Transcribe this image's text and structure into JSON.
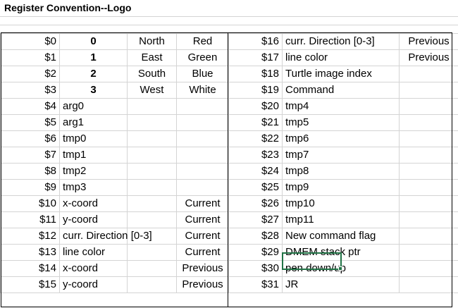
{
  "sheet": {
    "title": "Register Convention--Logo"
  },
  "left_rows": [
    {
      "reg": "$0",
      "a": "0",
      "b": "North",
      "c": "Red"
    },
    {
      "reg": "$1",
      "a": "1",
      "b": "East",
      "c": "Green"
    },
    {
      "reg": "$2",
      "a": "2",
      "b": "South",
      "c": "Blue"
    },
    {
      "reg": "$3",
      "a": "3",
      "b": "West",
      "c": "White"
    },
    {
      "reg": "$4",
      "a": "arg0",
      "b": "",
      "c": ""
    },
    {
      "reg": "$5",
      "a": "arg1",
      "b": "",
      "c": ""
    },
    {
      "reg": "$6",
      "a": "tmp0",
      "b": "",
      "c": ""
    },
    {
      "reg": "$7",
      "a": "tmp1",
      "b": "",
      "c": ""
    },
    {
      "reg": "$8",
      "a": "tmp2",
      "b": "",
      "c": ""
    },
    {
      "reg": "$9",
      "a": "tmp3",
      "b": "",
      "c": ""
    },
    {
      "reg": "$10",
      "a": "x-coord",
      "b": "",
      "c": "Current"
    },
    {
      "reg": "$11",
      "a": "y-coord",
      "b": "",
      "c": "Current"
    },
    {
      "reg": "$12",
      "a": "curr. Direction [0-3]",
      "b": "",
      "c": "Current"
    },
    {
      "reg": "$13",
      "a": "line color",
      "b": "",
      "c": "Current"
    },
    {
      "reg": "$14",
      "a": "x-coord",
      "b": "",
      "c": "Previous"
    },
    {
      "reg": "$15",
      "a": "y-coord",
      "b": "",
      "c": "Previous"
    }
  ],
  "right_rows": [
    {
      "reg": "$16",
      "desc": "curr. Direction [0-3]",
      "note": "Previous"
    },
    {
      "reg": "$17",
      "desc": "line color",
      "note": "Previous"
    },
    {
      "reg": "$18",
      "desc": "Turtle image index",
      "note": ""
    },
    {
      "reg": "$19",
      "desc": "Command",
      "note": ""
    },
    {
      "reg": "$20",
      "desc": "tmp4",
      "note": ""
    },
    {
      "reg": "$21",
      "desc": "tmp5",
      "note": ""
    },
    {
      "reg": "$22",
      "desc": "tmp6",
      "note": ""
    },
    {
      "reg": "$23",
      "desc": "tmp7",
      "note": ""
    },
    {
      "reg": "$24",
      "desc": "tmp8",
      "note": ""
    },
    {
      "reg": "$25",
      "desc": "tmp9",
      "note": ""
    },
    {
      "reg": "$26",
      "desc": "tmp10",
      "note": ""
    },
    {
      "reg": "$27",
      "desc": "tmp11",
      "note": ""
    },
    {
      "reg": "$28",
      "desc": "New command flag",
      "note": ""
    },
    {
      "reg": "$29",
      "desc": "DMEM stack ptr",
      "note": ""
    },
    {
      "reg": "$30",
      "desc": "pen down/up",
      "note": ""
    },
    {
      "reg": "$31",
      "desc": "JR",
      "note": ""
    }
  ],
  "style": {
    "gridline_color": "#d4d4d4",
    "border_color": "#000000",
    "selection_color": "#217346"
  }
}
